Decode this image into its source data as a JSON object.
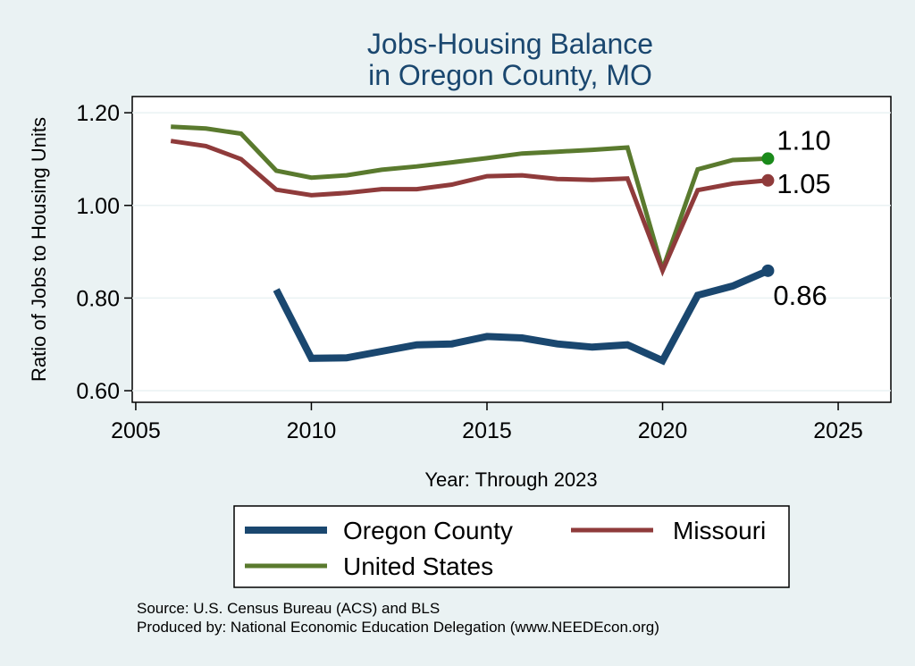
{
  "chart_data": {
    "type": "line",
    "title": [
      "Jobs-Housing Balance",
      "in Oregon County, MO"
    ],
    "xlabel": "Year: Through 2023",
    "ylabel": "Ratio of Jobs to Housing Units",
    "xlim": [
      2004.9,
      2026.5
    ],
    "ylim": [
      0.575,
      1.235
    ],
    "xticks": [
      2005,
      2010,
      2015,
      2020,
      2025
    ],
    "yticks": [
      0.6,
      0.8,
      1.0,
      1.2
    ],
    "ytick_labels": [
      "0.60",
      "0.80",
      "1.00",
      "1.20"
    ],
    "grid": true,
    "series": [
      {
        "name": "United States",
        "color": "#5a7a2e",
        "end_color": "#1a8a1a",
        "end_label": "1.10",
        "x": [
          2006,
          2007,
          2008,
          2009,
          2010,
          2011,
          2012,
          2013,
          2014,
          2015,
          2016,
          2017,
          2018,
          2019,
          2020,
          2021,
          2022,
          2023
        ],
        "values": [
          1.17,
          1.166,
          1.155,
          1.075,
          1.06,
          1.065,
          1.077,
          1.084,
          1.093,
          1.102,
          1.112,
          1.116,
          1.12,
          1.125,
          0.862,
          1.078,
          1.098,
          1.101
        ]
      },
      {
        "name": "Missouri",
        "color": "#8f3b3b",
        "end_color": "#8f3b3b",
        "end_label": "1.05",
        "x": [
          2006,
          2007,
          2008,
          2009,
          2010,
          2011,
          2012,
          2013,
          2014,
          2015,
          2016,
          2017,
          2018,
          2019,
          2020,
          2021,
          2022,
          2023
        ],
        "values": [
          1.139,
          1.128,
          1.1,
          1.034,
          1.022,
          1.027,
          1.035,
          1.035,
          1.045,
          1.063,
          1.065,
          1.057,
          1.055,
          1.058,
          0.859,
          1.033,
          1.047,
          1.054
        ]
      },
      {
        "name": "Oregon County",
        "color": "#1a476f",
        "end_color": "#1a476f",
        "end_label": "0.86",
        "x": [
          2009,
          2010,
          2011,
          2012,
          2013,
          2014,
          2015,
          2016,
          2017,
          2018,
          2019,
          2020,
          2021,
          2022,
          2023
        ],
        "values": [
          0.818,
          0.67,
          0.671,
          0.685,
          0.699,
          0.701,
          0.717,
          0.714,
          0.701,
          0.694,
          0.699,
          0.665,
          0.806,
          0.826,
          0.859
        ]
      }
    ],
    "legend": [
      "Oregon County",
      "Missouri",
      "United States"
    ],
    "source_lines": [
      "Source: U.S. Census Bureau (ACS) and BLS",
      "Produced by: National Economic Education Delegation (www.NEEDEcon.org)"
    ]
  }
}
